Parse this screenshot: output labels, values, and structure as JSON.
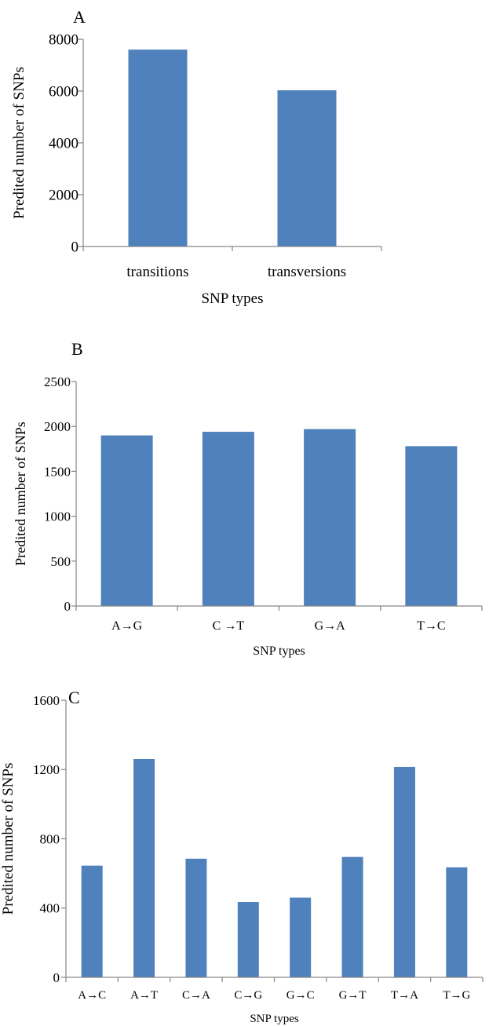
{
  "chart_data": [
    {
      "panel": "A",
      "type": "bar",
      "categories": [
        "transitions",
        "transversions"
      ],
      "values": [
        7600,
        6030
      ],
      "xlabel": "SNP types",
      "ylabel": "Predited number of SNPs",
      "ylim": [
        0,
        8000
      ],
      "yticks": [
        0,
        2000,
        4000,
        6000,
        8000
      ],
      "color": "#4f81bd",
      "grid": false,
      "legend": "none"
    },
    {
      "panel": "B",
      "type": "bar",
      "categories": [
        "A→G",
        "C →T",
        "G→A",
        "T→C"
      ],
      "values": [
        1900,
        1940,
        1970,
        1780
      ],
      "xlabel": "SNP types",
      "ylabel": "Predited number of SNPs",
      "ylim": [
        0,
        2500
      ],
      "yticks": [
        0,
        500,
        1000,
        1500,
        2000,
        2500
      ],
      "color": "#4f81bd",
      "grid": false,
      "legend": "none"
    },
    {
      "panel": "C",
      "type": "bar",
      "categories": [
        "A→C",
        "A→T",
        "C→A",
        "C→G",
        "G→C",
        "G→T",
        "T→A",
        "T→G"
      ],
      "values": [
        645,
        1260,
        685,
        435,
        460,
        695,
        1215,
        635
      ],
      "xlabel": "SNP types",
      "ylabel": "Predited number of SNPs",
      "ylim": [
        0,
        1600
      ],
      "yticks": [
        0,
        400,
        800,
        1200,
        1600
      ],
      "color": "#4f81bd",
      "grid": false,
      "legend": "none"
    }
  ]
}
